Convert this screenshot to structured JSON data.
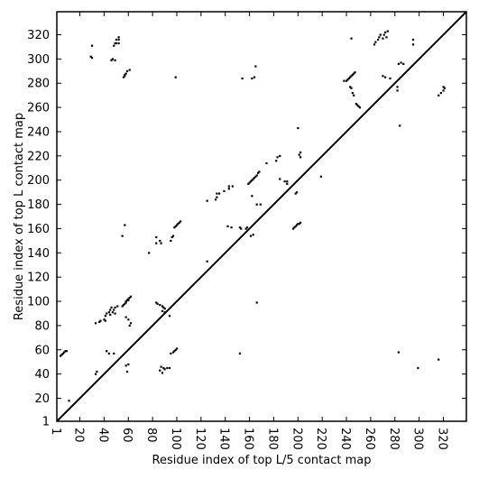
{
  "chart_data": {
    "type": "scatter",
    "title": "",
    "xlabel": "Residue index of top L/5 contact map",
    "ylabel": "Residue index of top L contact map",
    "xlim": [
      1,
      339
    ],
    "ylim": [
      1,
      339
    ],
    "x_ticks": [
      1,
      20,
      40,
      60,
      80,
      100,
      120,
      140,
      160,
      180,
      200,
      220,
      240,
      260,
      280,
      300,
      320
    ],
    "y_ticks": [
      1,
      20,
      40,
      60,
      80,
      100,
      120,
      140,
      160,
      180,
      200,
      220,
      240,
      260,
      280,
      300,
      320
    ],
    "x_tick_rotation": 270,
    "diagonal": true,
    "grid": false,
    "legend": "none",
    "marker_color": "#000000",
    "series": [
      {
        "part": "upper-left (top L contacts)",
        "points": [
          [
            29,
            302
          ],
          [
            30,
            301
          ],
          [
            30,
            311
          ],
          [
            46,
            299
          ],
          [
            47,
            300
          ],
          [
            49,
            299
          ],
          [
            48,
            311
          ],
          [
            49,
            313
          ],
          [
            50,
            313
          ],
          [
            50,
            316
          ],
          [
            52,
            313
          ],
          [
            52,
            316
          ],
          [
            52,
            318
          ],
          [
            56,
            285
          ],
          [
            57,
            286
          ],
          [
            57,
            287
          ],
          [
            58,
            288
          ],
          [
            59,
            290
          ],
          [
            61,
            291
          ],
          [
            99,
            285
          ],
          [
            154,
            284
          ],
          [
            162,
            284
          ],
          [
            164,
            285
          ],
          [
            165,
            294
          ],
          [
            55,
            154
          ],
          [
            57,
            163
          ],
          [
            83,
            148
          ],
          [
            83,
            153
          ],
          [
            86,
            150
          ],
          [
            95,
            150
          ],
          [
            96,
            153
          ],
          [
            97,
            154
          ],
          [
            98,
            161
          ],
          [
            99,
            162
          ],
          [
            100,
            163
          ],
          [
            101,
            164
          ],
          [
            102,
            165
          ],
          [
            103,
            166
          ],
          [
            77,
            140
          ],
          [
            87,
            148
          ],
          [
            125,
            183
          ],
          [
            132,
            184
          ],
          [
            133,
            186
          ],
          [
            133,
            189
          ],
          [
            135,
            189
          ],
          [
            139,
            191
          ],
          [
            143,
            193
          ],
          [
            143,
            195
          ],
          [
            146,
            195
          ],
          [
            142,
            162
          ],
          [
            145,
            161
          ],
          [
            152,
            161
          ],
          [
            153,
            160
          ],
          [
            161,
            154
          ],
          [
            163,
            155
          ],
          [
            166,
            180
          ],
          [
            169,
            180
          ],
          [
            159,
            197
          ],
          [
            160,
            198
          ],
          [
            161,
            199
          ],
          [
            162,
            200
          ],
          [
            163,
            201
          ],
          [
            164,
            202
          ],
          [
            165,
            203
          ],
          [
            166,
            204
          ],
          [
            167,
            206
          ],
          [
            168,
            207
          ],
          [
            162,
            187
          ],
          [
            174,
            214
          ],
          [
            182,
            216
          ],
          [
            183,
            219
          ],
          [
            185,
            220
          ],
          [
            185,
            201
          ],
          [
            189,
            199
          ],
          [
            191,
            197
          ],
          [
            191,
            199
          ],
          [
            198,
            189
          ],
          [
            199,
            190
          ],
          [
            201,
            221
          ],
          [
            202,
            223
          ],
          [
            202,
            219
          ],
          [
            200,
            243
          ],
          [
            219,
            203
          ],
          [
            33,
            82
          ],
          [
            36,
            83
          ],
          [
            37,
            84
          ],
          [
            40,
            85
          ],
          [
            41,
            84
          ],
          [
            41,
            88
          ],
          [
            42,
            90
          ],
          [
            44,
            91
          ],
          [
            45,
            89
          ],
          [
            45,
            93
          ],
          [
            46,
            95
          ],
          [
            47,
            91
          ],
          [
            48,
            93
          ],
          [
            49,
            95
          ],
          [
            49,
            90
          ],
          [
            51,
            96
          ],
          [
            55,
            96
          ],
          [
            56,
            97
          ],
          [
            57,
            98
          ],
          [
            58,
            99
          ],
          [
            58,
            100
          ],
          [
            59,
            101
          ],
          [
            60,
            101
          ],
          [
            60,
            102
          ],
          [
            61,
            103
          ],
          [
            62,
            104
          ],
          [
            58,
            87
          ],
          [
            60,
            85
          ],
          [
            61,
            80
          ],
          [
            62,
            82
          ],
          [
            83,
            99
          ],
          [
            84,
            98
          ],
          [
            86,
            97
          ],
          [
            88,
            96
          ],
          [
            89,
            95
          ],
          [
            90,
            94
          ],
          [
            88,
            92
          ],
          [
            90,
            91
          ],
          [
            94,
            88
          ],
          [
            125,
            133
          ]
        ]
      },
      {
        "part": "lower-right (top L/5 contacts)",
        "points": [
          [
            4,
            55
          ],
          [
            5,
            56
          ],
          [
            6,
            57
          ],
          [
            7,
            58
          ],
          [
            8,
            59
          ],
          [
            9,
            59
          ],
          [
            11,
            18
          ],
          [
            33,
            40
          ],
          [
            34,
            42
          ],
          [
            42,
            59
          ],
          [
            44,
            57
          ],
          [
            48,
            57
          ],
          [
            58,
            47
          ],
          [
            59,
            42
          ],
          [
            60,
            48
          ],
          [
            86,
            43
          ],
          [
            87,
            46
          ],
          [
            88,
            41
          ],
          [
            89,
            45
          ],
          [
            90,
            44
          ],
          [
            92,
            45
          ],
          [
            94,
            45
          ],
          [
            95,
            57
          ],
          [
            97,
            58
          ],
          [
            98,
            59
          ],
          [
            99,
            60
          ],
          [
            100,
            61
          ],
          [
            152,
            57
          ],
          [
            166,
            99
          ],
          [
            283,
            58
          ],
          [
            299,
            45
          ],
          [
            316,
            52
          ],
          [
            196,
            160
          ],
          [
            197,
            161
          ],
          [
            198,
            162
          ],
          [
            199,
            163
          ],
          [
            200,
            164
          ],
          [
            201,
            164
          ],
          [
            202,
            165
          ],
          [
            157,
            160
          ],
          [
            158,
            161
          ],
          [
            238,
            282
          ],
          [
            240,
            282
          ],
          [
            241,
            283
          ],
          [
            242,
            284
          ],
          [
            243,
            285
          ],
          [
            244,
            286
          ],
          [
            245,
            287
          ],
          [
            246,
            288
          ],
          [
            247,
            289
          ],
          [
            243,
            277
          ],
          [
            244,
            276
          ],
          [
            245,
            272
          ],
          [
            246,
            270
          ],
          [
            248,
            263
          ],
          [
            249,
            262
          ],
          [
            250,
            261
          ],
          [
            251,
            260
          ],
          [
            244,
            317
          ],
          [
            263,
            312
          ],
          [
            264,
            314
          ],
          [
            266,
            316
          ],
          [
            267,
            318
          ],
          [
            268,
            320
          ],
          [
            270,
            317
          ],
          [
            271,
            320
          ],
          [
            272,
            322
          ],
          [
            273,
            318
          ],
          [
            274,
            323
          ],
          [
            270,
            286
          ],
          [
            272,
            285
          ],
          [
            276,
            284
          ],
          [
            282,
            277
          ],
          [
            282,
            274
          ],
          [
            283,
            296
          ],
          [
            285,
            297
          ],
          [
            284,
            245
          ],
          [
            287,
            296
          ],
          [
            295,
            316
          ],
          [
            295,
            312
          ],
          [
            316,
            270
          ],
          [
            318,
            272
          ],
          [
            320,
            274
          ],
          [
            320,
            277
          ],
          [
            321,
            276
          ]
        ]
      }
    ]
  }
}
